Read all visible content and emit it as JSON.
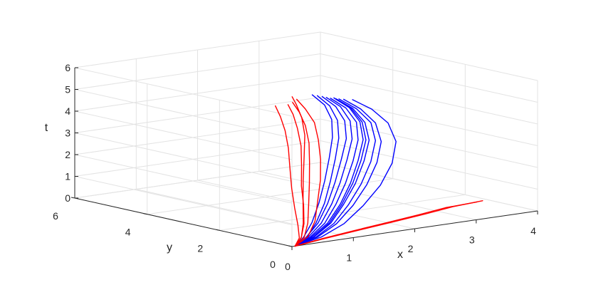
{
  "chart_data": {
    "type": "line-3d",
    "title": "",
    "xlabel": "x",
    "ylabel": "y",
    "zlabel": "t",
    "xlim": [
      0,
      4
    ],
    "ylim": [
      0,
      6
    ],
    "zlim": [
      0,
      6
    ],
    "xticks": [
      "0",
      "1",
      "2",
      "3",
      "4"
    ],
    "yticks": [
      "0",
      "2",
      "4",
      "6"
    ],
    "zticks": [
      "0",
      "1",
      "2",
      "3",
      "4",
      "5",
      "6"
    ],
    "grid": true,
    "colors": {
      "red": "#ff0000",
      "blue": "#0000ff"
    },
    "series": [
      {
        "color": "red",
        "points": [
          [
            0.05,
            0,
            0
          ],
          [
            0.6,
            0.1,
            0.09
          ],
          [
            1.2,
            0.2,
            0.18
          ],
          [
            1.8,
            0.3,
            0.27
          ],
          [
            2.4,
            0.4,
            0.36
          ],
          [
            2.9,
            0.5,
            0.45
          ],
          [
            3.4,
            0.5,
            0.53
          ]
        ]
      },
      {
        "color": "red",
        "points": [
          [
            0.05,
            0,
            0
          ],
          [
            0.55,
            0.11,
            0.09
          ],
          [
            1.1,
            0.21,
            0.18
          ],
          [
            1.7,
            0.31,
            0.27
          ],
          [
            2.3,
            0.41,
            0.36
          ],
          [
            2.8,
            0.51,
            0.45
          ],
          [
            3.32,
            0.52,
            0.5
          ]
        ]
      },
      {
        "color": "red",
        "points": [
          [
            0.05,
            0,
            0
          ],
          [
            0.3,
            0.25,
            0.2
          ],
          [
            0.55,
            0.6,
            0.6
          ],
          [
            0.78,
            1.0,
            1.2
          ],
          [
            0.95,
            1.35,
            1.9
          ],
          [
            1.1,
            1.6,
            2.7
          ],
          [
            1.18,
            1.75,
            3.5
          ],
          [
            1.15,
            1.8,
            4.3
          ],
          [
            1.05,
            1.75,
            5.0
          ],
          [
            0.95,
            1.72,
            5.5
          ]
        ]
      },
      {
        "color": "red",
        "points": [
          [
            0.05,
            0,
            0
          ],
          [
            0.33,
            0.22,
            0.21
          ],
          [
            0.6,
            0.58,
            0.62
          ],
          [
            0.85,
            0.98,
            1.25
          ],
          [
            1.05,
            1.3,
            2.0
          ],
          [
            1.2,
            1.55,
            2.8
          ],
          [
            1.28,
            1.7,
            3.6
          ],
          [
            1.25,
            1.75,
            4.4
          ],
          [
            1.12,
            1.7,
            5.1
          ],
          [
            1.0,
            1.68,
            5.6
          ]
        ]
      },
      {
        "color": "red",
        "points": [
          [
            0.05,
            0,
            0
          ],
          [
            0.38,
            0.2,
            0.23
          ],
          [
            0.7,
            0.55,
            0.68
          ],
          [
            0.98,
            0.95,
            1.35
          ],
          [
            1.2,
            1.25,
            2.1
          ],
          [
            1.35,
            1.5,
            2.9
          ],
          [
            1.42,
            1.68,
            3.7
          ],
          [
            1.38,
            1.72,
            4.5
          ],
          [
            1.22,
            1.7,
            5.2
          ],
          [
            1.08,
            1.7,
            5.7
          ]
        ]
      },
      {
        "color": "red",
        "points": [
          [
            0.05,
            0,
            0
          ],
          [
            0.28,
            0.27,
            0.18
          ],
          [
            0.48,
            0.65,
            0.55
          ],
          [
            0.68,
            1.08,
            1.1
          ],
          [
            0.85,
            1.45,
            1.8
          ],
          [
            0.98,
            1.72,
            2.6
          ],
          [
            1.05,
            1.88,
            3.4
          ],
          [
            1.02,
            1.92,
            4.2
          ],
          [
            0.92,
            1.88,
            4.9
          ],
          [
            0.82,
            1.85,
            5.45
          ]
        ]
      },
      {
        "color": "red",
        "points": [
          [
            0.05,
            0,
            0
          ],
          [
            0.3,
            0.25,
            0.2
          ],
          [
            0.55,
            0.62,
            0.62
          ],
          [
            0.8,
            1.05,
            1.3
          ],
          [
            1.02,
            1.42,
            2.1
          ],
          [
            1.2,
            1.7,
            3.0
          ],
          [
            1.3,
            1.85,
            3.9
          ],
          [
            1.28,
            1.9,
            4.7
          ],
          [
            1.18,
            1.88,
            5.35
          ],
          [
            1.1,
            1.86,
            5.75
          ]
        ]
      },
      {
        "color": "blue",
        "points": [
          [
            0.05,
            0,
            0
          ],
          [
            0.4,
            0.18,
            0.2
          ],
          [
            0.8,
            0.45,
            0.58
          ],
          [
            1.2,
            0.82,
            1.15
          ],
          [
            1.55,
            1.15,
            1.85
          ],
          [
            1.85,
            1.45,
            2.65
          ],
          [
            2.05,
            1.65,
            3.45
          ],
          [
            2.1,
            1.78,
            4.2
          ],
          [
            1.95,
            1.82,
            4.9
          ],
          [
            1.7,
            1.82,
            5.45
          ]
        ]
      },
      {
        "color": "blue",
        "points": [
          [
            0.05,
            0,
            0
          ],
          [
            0.45,
            0.16,
            0.19
          ],
          [
            0.88,
            0.42,
            0.56
          ],
          [
            1.3,
            0.78,
            1.12
          ],
          [
            1.68,
            1.1,
            1.8
          ],
          [
            2.0,
            1.4,
            2.6
          ],
          [
            2.2,
            1.6,
            3.4
          ],
          [
            2.22,
            1.75,
            4.15
          ],
          [
            2.05,
            1.8,
            4.85
          ],
          [
            1.78,
            1.8,
            5.4
          ]
        ]
      },
      {
        "color": "blue",
        "points": [
          [
            0.05,
            0,
            0
          ],
          [
            0.35,
            0.2,
            0.21
          ],
          [
            0.72,
            0.5,
            0.6
          ],
          [
            1.1,
            0.88,
            1.2
          ],
          [
            1.42,
            1.22,
            1.92
          ],
          [
            1.7,
            1.52,
            2.75
          ],
          [
            1.9,
            1.72,
            3.55
          ],
          [
            1.95,
            1.85,
            4.3
          ],
          [
            1.82,
            1.88,
            5.0
          ],
          [
            1.6,
            1.88,
            5.55
          ]
        ]
      },
      {
        "color": "blue",
        "points": [
          [
            0.05,
            0,
            0
          ],
          [
            0.5,
            0.14,
            0.18
          ],
          [
            0.95,
            0.38,
            0.52
          ],
          [
            1.42,
            0.72,
            1.05
          ],
          [
            1.82,
            1.02,
            1.72
          ],
          [
            2.15,
            1.3,
            2.5
          ],
          [
            2.35,
            1.52,
            3.3
          ],
          [
            2.35,
            1.68,
            4.1
          ],
          [
            2.15,
            1.75,
            4.8
          ],
          [
            1.88,
            1.76,
            5.35
          ]
        ]
      },
      {
        "color": "blue",
        "points": [
          [
            0.05,
            0,
            0
          ],
          [
            0.32,
            0.22,
            0.22
          ],
          [
            0.65,
            0.55,
            0.63
          ],
          [
            1.0,
            0.95,
            1.25
          ],
          [
            1.3,
            1.3,
            2.0
          ],
          [
            1.55,
            1.6,
            2.85
          ],
          [
            1.72,
            1.8,
            3.65
          ],
          [
            1.78,
            1.92,
            4.4
          ],
          [
            1.68,
            1.95,
            5.1
          ],
          [
            1.48,
            1.95,
            5.65
          ]
        ]
      },
      {
        "color": "blue",
        "points": [
          [
            0.05,
            0,
            0
          ],
          [
            0.42,
            0.17,
            0.2
          ],
          [
            0.84,
            0.44,
            0.57
          ],
          [
            1.26,
            0.8,
            1.14
          ],
          [
            1.62,
            1.13,
            1.84
          ],
          [
            1.92,
            1.43,
            2.64
          ],
          [
            2.12,
            1.63,
            3.44
          ],
          [
            2.15,
            1.77,
            4.2
          ],
          [
            2.0,
            1.81,
            4.9
          ],
          [
            1.75,
            1.81,
            5.45
          ]
        ]
      },
      {
        "color": "blue",
        "points": [
          [
            0.05,
            0,
            0
          ],
          [
            0.55,
            0.12,
            0.17
          ],
          [
            1.05,
            0.34,
            0.5
          ],
          [
            1.55,
            0.66,
            1.0
          ],
          [
            2.0,
            0.95,
            1.65
          ],
          [
            2.35,
            1.22,
            2.42
          ],
          [
            2.55,
            1.45,
            3.25
          ],
          [
            2.52,
            1.62,
            4.05
          ],
          [
            2.3,
            1.7,
            4.75
          ],
          [
            2.0,
            1.72,
            5.3
          ]
        ]
      },
      {
        "color": "blue",
        "points": [
          [
            0.05,
            0,
            0
          ],
          [
            0.38,
            0.19,
            0.21
          ],
          [
            0.76,
            0.48,
            0.59
          ],
          [
            1.15,
            0.85,
            1.18
          ],
          [
            1.48,
            1.18,
            1.9
          ],
          [
            1.77,
            1.48,
            2.72
          ],
          [
            1.97,
            1.68,
            3.52
          ],
          [
            2.02,
            1.82,
            4.28
          ],
          [
            1.88,
            1.85,
            4.98
          ],
          [
            1.65,
            1.85,
            5.5
          ]
        ]
      },
      {
        "color": "blue",
        "points": [
          [
            0.05,
            0,
            0
          ],
          [
            0.48,
            0.15,
            0.18
          ],
          [
            0.92,
            0.4,
            0.54
          ],
          [
            1.36,
            0.75,
            1.08
          ],
          [
            1.75,
            1.06,
            1.76
          ],
          [
            2.08,
            1.35,
            2.55
          ],
          [
            2.28,
            1.56,
            3.36
          ],
          [
            2.3,
            1.72,
            4.12
          ],
          [
            2.1,
            1.78,
            4.82
          ],
          [
            1.82,
            1.79,
            5.38
          ]
        ]
      },
      {
        "color": "blue",
        "points": [
          [
            0.05,
            0,
            0
          ],
          [
            0.36,
            0.2,
            0.21
          ],
          [
            0.7,
            0.52,
            0.61
          ],
          [
            1.06,
            0.9,
            1.22
          ],
          [
            1.36,
            1.25,
            1.96
          ],
          [
            1.62,
            1.55,
            2.8
          ],
          [
            1.8,
            1.76,
            3.6
          ],
          [
            1.85,
            1.88,
            4.35
          ],
          [
            1.74,
            1.91,
            5.05
          ],
          [
            1.54,
            1.91,
            5.6
          ]
        ]
      },
      {
        "color": "blue",
        "points": [
          [
            0.05,
            0,
            0
          ],
          [
            0.44,
            0.16,
            0.19
          ],
          [
            0.86,
            0.43,
            0.56
          ],
          [
            1.28,
            0.79,
            1.13
          ],
          [
            1.65,
            1.12,
            1.82
          ],
          [
            1.96,
            1.42,
            2.62
          ],
          [
            2.16,
            1.62,
            3.42
          ],
          [
            2.18,
            1.76,
            4.18
          ],
          [
            2.02,
            1.8,
            4.88
          ],
          [
            1.76,
            1.8,
            5.42
          ]
        ]
      }
    ]
  }
}
